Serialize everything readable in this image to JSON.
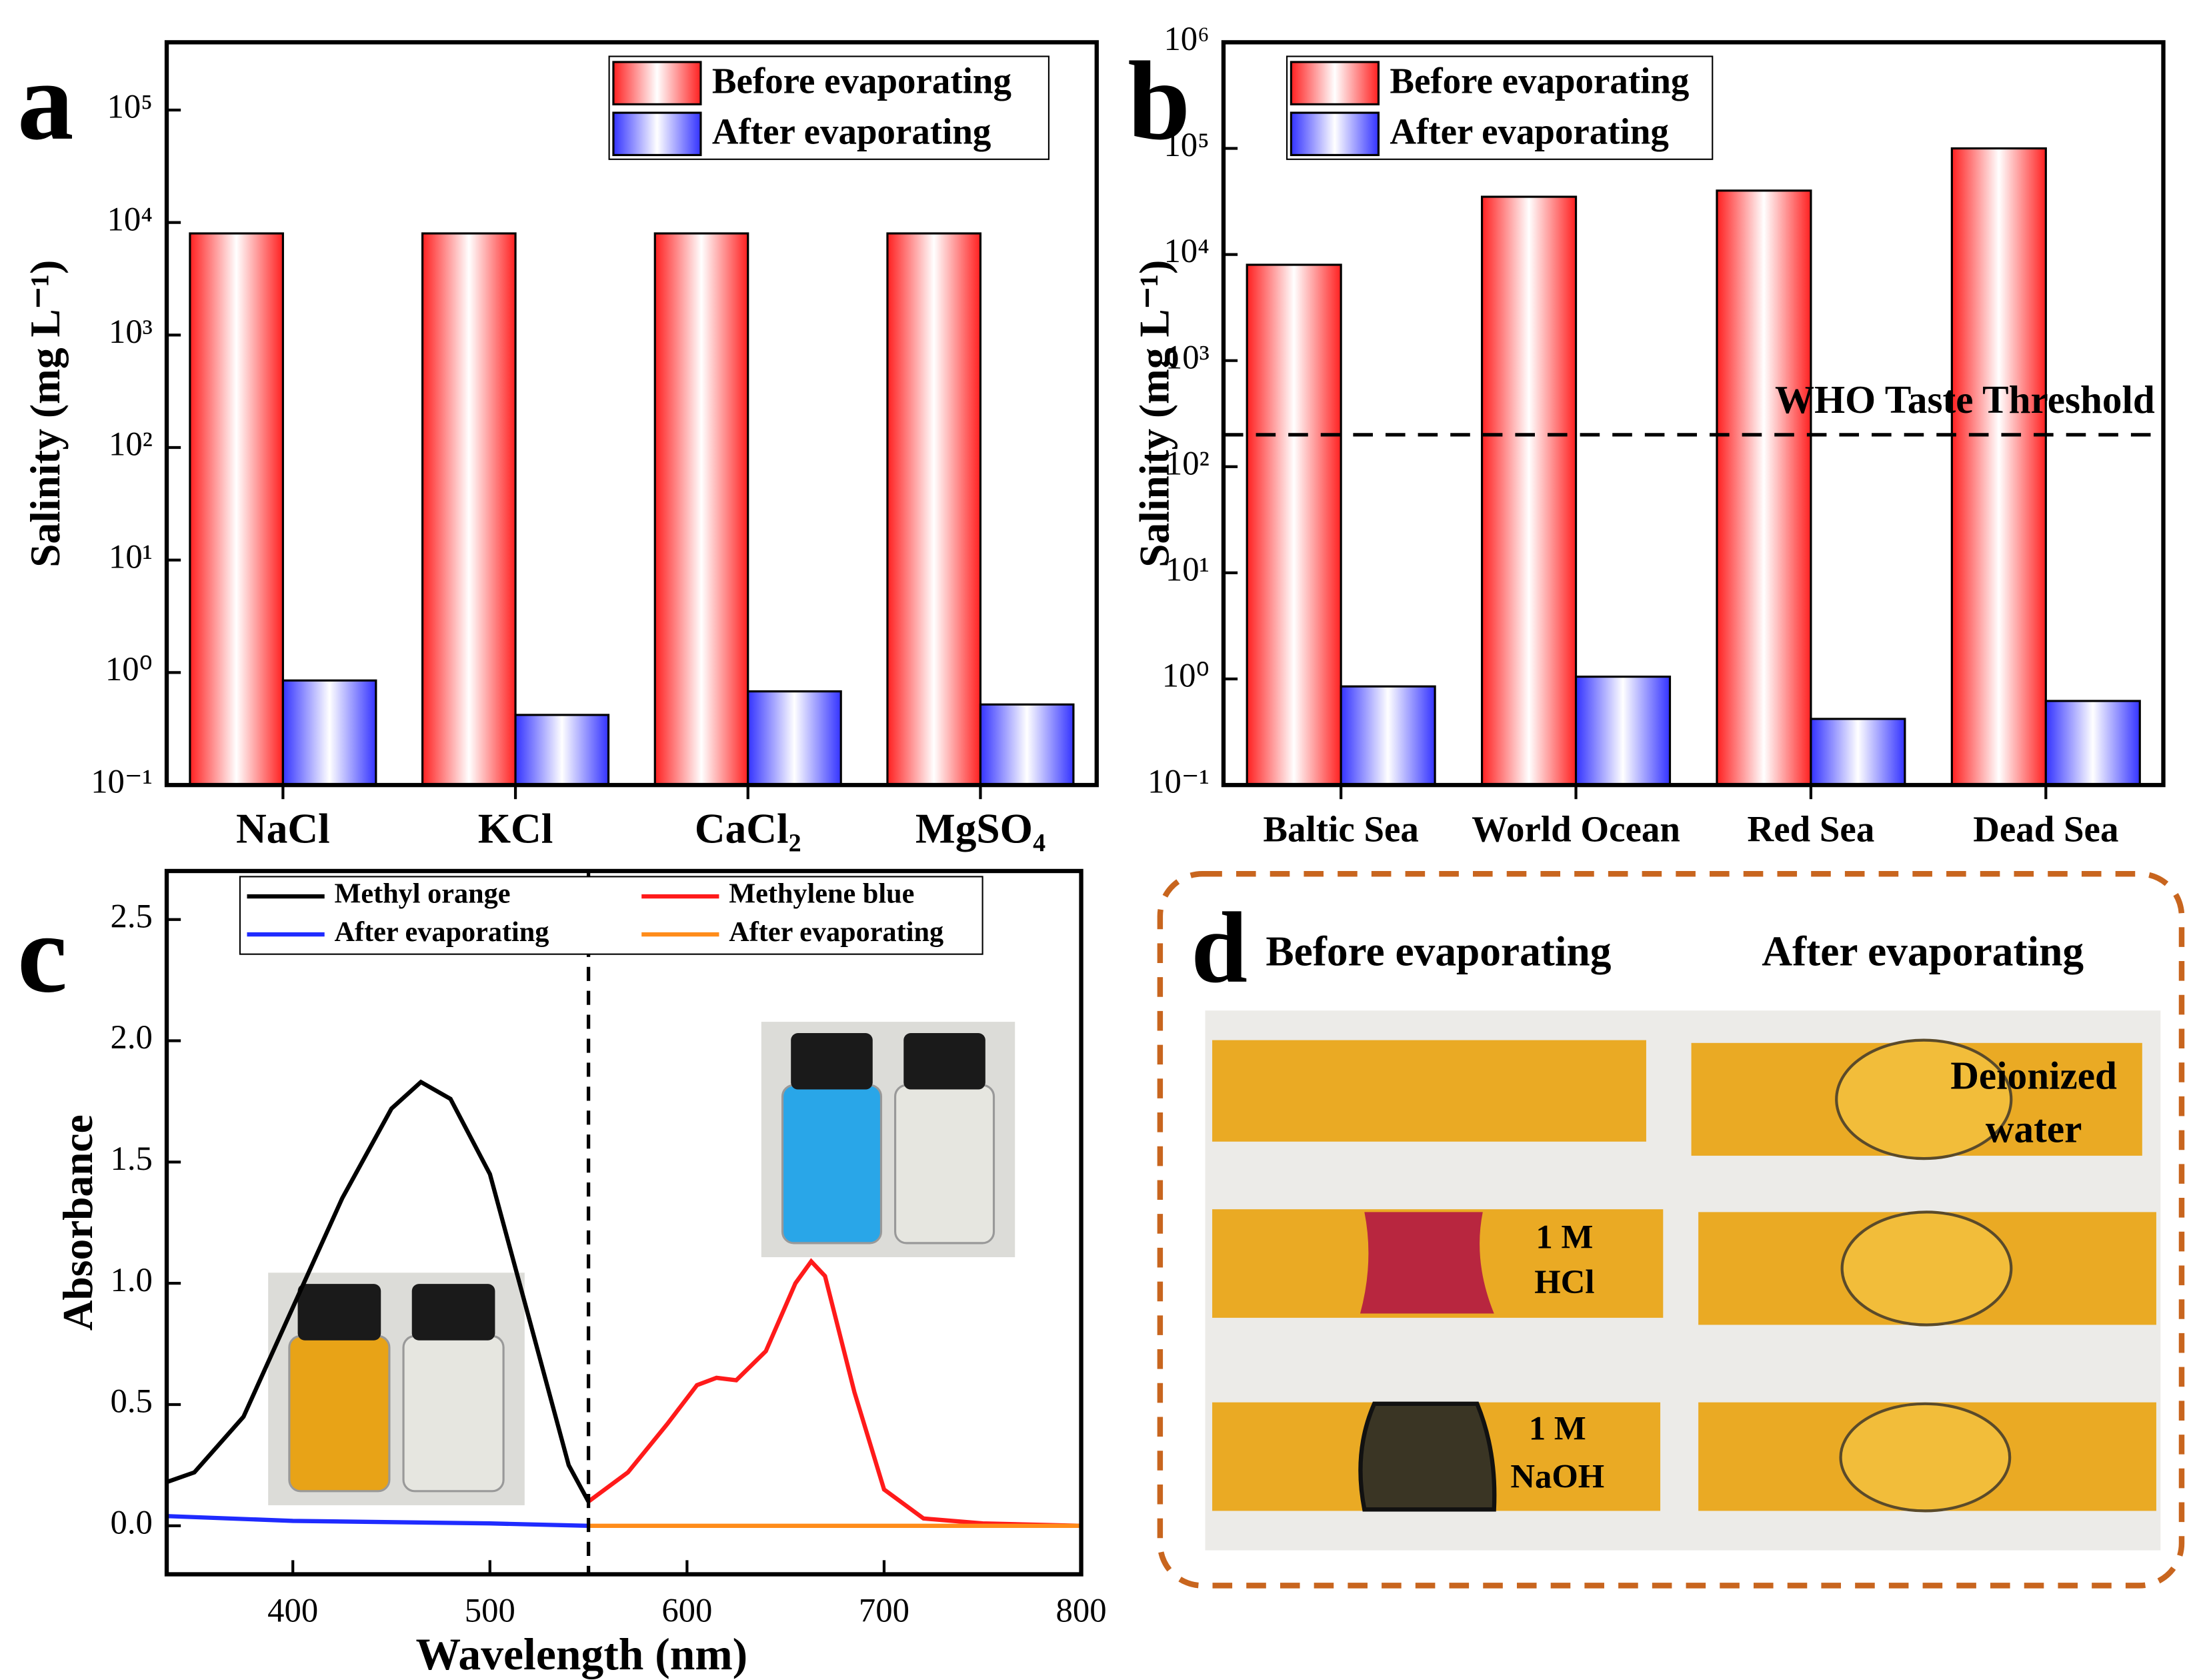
{
  "chart_data": [
    {
      "type": "bar",
      "panel": "a",
      "ylabel": "Salinity (mg L⁻¹)",
      "log": true,
      "categories": [
        "NaCl",
        "KCl",
        "CaCl₂",
        "MgSO₄"
      ],
      "series": [
        {
          "name": "Before evaporating",
          "color": "#ff2020",
          "values": [
            8000,
            8000,
            8000,
            8000
          ]
        },
        {
          "name": "After evaporating",
          "color": "#3333ff",
          "values": [
            0.85,
            0.42,
            0.68,
            0.52
          ]
        }
      ],
      "ylim": [
        0.1,
        400000
      ],
      "yticks": [
        {
          "value": 0.1,
          "label": "10⁻¹"
        },
        {
          "value": 1,
          "label": "10⁰"
        },
        {
          "value": 10,
          "label": "10¹"
        },
        {
          "value": 100,
          "label": "10²"
        },
        {
          "value": 1000,
          "label": "10³"
        },
        {
          "value": 10000,
          "label": "10⁴"
        },
        {
          "value": 100000,
          "label": "10⁵"
        }
      ],
      "legend": "upper right"
    },
    {
      "type": "bar",
      "panel": "b",
      "ylabel": "Salinity (mg L⁻¹)",
      "log": true,
      "categories": [
        "Baltic Sea",
        "World Ocean",
        "Red Sea",
        "Dead Sea"
      ],
      "series": [
        {
          "name": "Before evaporating",
          "color": "#ff2020",
          "values": [
            8000,
            35000,
            40000,
            100000
          ]
        },
        {
          "name": "After evaporating",
          "color": "#3333ff",
          "values": [
            0.85,
            1.05,
            0.42,
            0.62
          ]
        }
      ],
      "ylim": [
        0.1,
        1000000
      ],
      "yticks": [
        {
          "value": 0.1,
          "label": "10⁻¹"
        },
        {
          "value": 1,
          "label": "10⁰"
        },
        {
          "value": 10,
          "label": "10¹"
        },
        {
          "value": 100,
          "label": "10²"
        },
        {
          "value": 1000,
          "label": "10³"
        },
        {
          "value": 10000,
          "label": "10⁴"
        },
        {
          "value": 100000,
          "label": "10⁵"
        },
        {
          "value": 1000000,
          "label": "10⁶"
        }
      ],
      "hline": {
        "value": 200,
        "label": "WHO Taste Threshold"
      },
      "legend": "upper left"
    },
    {
      "type": "line",
      "panel": "c",
      "xlabel": "Wavelength (nm)",
      "ylabel": "Absorbance",
      "series": [
        {
          "name": "Methyl orange",
          "color": "#000000",
          "x": [
            336,
            350,
            375,
            400,
            425,
            450,
            465,
            480,
            500,
            520,
            540,
            550
          ],
          "y": [
            0.18,
            0.22,
            0.45,
            0.9,
            1.35,
            1.72,
            1.83,
            1.76,
            1.45,
            0.85,
            0.25,
            0.1
          ]
        },
        {
          "name": "After evaporating",
          "color": "#1f2bff",
          "x": [
            336,
            400,
            500,
            550
          ],
          "y": [
            0.04,
            0.02,
            0.01,
            0
          ]
        },
        {
          "name": "Methylene blue",
          "color": "#ff1a1a",
          "x": [
            550,
            570,
            590,
            605,
            615,
            625,
            640,
            655,
            663,
            670,
            685,
            700,
            720,
            750,
            800
          ],
          "y": [
            0.1,
            0.22,
            0.42,
            0.58,
            0.61,
            0.6,
            0.72,
            1.0,
            1.09,
            1.03,
            0.55,
            0.15,
            0.03,
            0.01,
            0
          ]
        },
        {
          "name": "After evaporating",
          "color": "#ff8c1a",
          "x": [
            550,
            800
          ],
          "y": [
            0,
            0
          ]
        }
      ],
      "xlim": [
        336,
        800
      ],
      "xticks": [
        400,
        500,
        600,
        700,
        800
      ],
      "ylim": [
        -0.2,
        2.7
      ],
      "yticks": [
        {
          "value": 0,
          "label": "0.0"
        },
        0.5,
        {
          "value": 1,
          "label": "1.0"
        },
        1.5,
        {
          "value": 2,
          "label": "2.0"
        },
        2.5
      ],
      "vline": 550,
      "legend": "upper center"
    }
  ],
  "photo_panel": {
    "panel": "d",
    "left_title": "Before evaporating",
    "right_title": "After evaporating",
    "labels": [
      [
        "Deionized",
        "water"
      ],
      [
        "1 M",
        "HCl"
      ],
      [
        "1 M",
        "NaOH"
      ]
    ]
  }
}
